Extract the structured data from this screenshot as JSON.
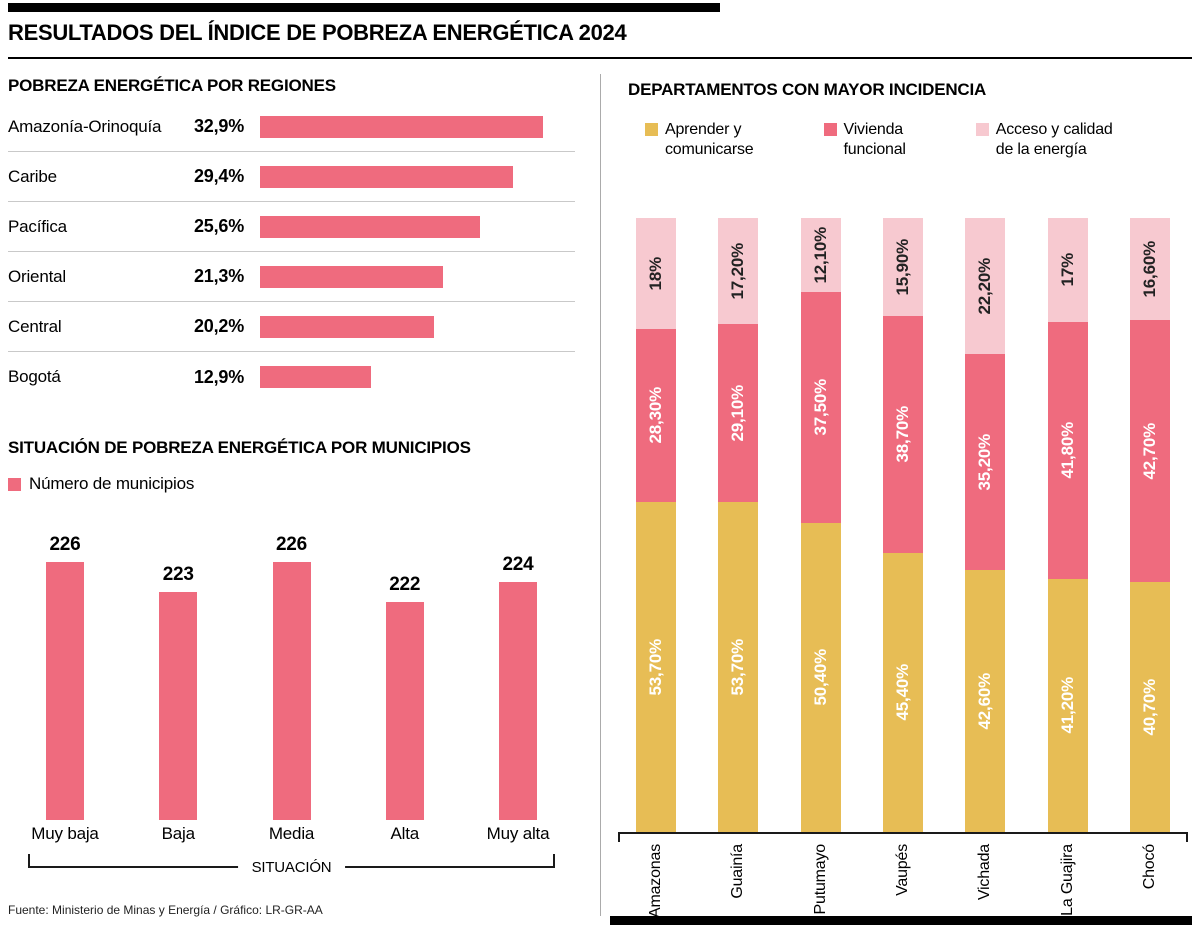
{
  "header": {
    "title": "RESULTADOS DEL ÍNDICE DE POBREZA ENERGÉTICA 2024"
  },
  "footer": {
    "source": "Fuente: Ministerio de Minas y Energía / Gráfico: LR-GR-AA"
  },
  "colors": {
    "pink": "#ef6b7e",
    "yellow": "#e7bd55",
    "light_pink": "#f7c9d0",
    "rule_black": "#000000"
  },
  "chart_data": [
    {
      "id": "regiones",
      "type": "bar",
      "orientation": "horizontal",
      "title": "POBREZA ENERGÉTICA POR REGIONES",
      "categories": [
        "Amazonía-Orinoquía",
        "Caribe",
        "Pacífica",
        "Oriental",
        "Central",
        "Bogotá"
      ],
      "values": [
        32.9,
        29.4,
        25.6,
        21.3,
        20.2,
        12.9
      ],
      "value_labels": [
        "32,9%",
        "29,4%",
        "25,6%",
        "21,3%",
        "20,2%",
        "12,9%"
      ],
      "unit": "%",
      "bar_color": "#ef6b7e"
    },
    {
      "id": "municipios",
      "type": "bar",
      "orientation": "vertical",
      "title": "SITUACIÓN DE POBREZA ENERGÉTICA POR MUNICIPIOS",
      "legend": "Número de municipios",
      "categories": [
        "Muy baja",
        "Baja",
        "Media",
        "Alta",
        "Muy alta"
      ],
      "values": [
        226,
        223,
        226,
        222,
        224
      ],
      "xlabel": "SITUACIÓN",
      "bar_color": "#ef6b7e"
    },
    {
      "id": "departamentos",
      "type": "stacked-bar",
      "orientation": "vertical",
      "title": "DEPARTAMENTOS CON MAYOR INCIDENCIA",
      "categories": [
        "Amazonas",
        "Guainía",
        "Putumayo",
        "Vaupés",
        "Vichada",
        "La Guajira",
        "Chocó"
      ],
      "ylim": [
        0,
        100
      ],
      "unit": "%",
      "series": [
        {
          "name": "Aprender y comunicarse",
          "legend_label": "Aprender y\ncomunicarse",
          "color": "#e7bd55",
          "label_color": "#ffffff",
          "values": [
            53.7,
            53.7,
            50.4,
            45.4,
            42.6,
            41.2,
            40.7
          ],
          "value_labels": [
            "53,70%",
            "53,70%",
            "50,40%",
            "45,40%",
            "42,60%",
            "41,20%",
            "40,70%"
          ]
        },
        {
          "name": "Vivienda funcional",
          "legend_label": "Vivienda\nfuncional",
          "color": "#ef6b7e",
          "label_color": "#ffffff",
          "values": [
            28.3,
            29.1,
            37.5,
            38.7,
            35.2,
            41.8,
            42.7
          ],
          "value_labels": [
            "28,30%",
            "29,10%",
            "37,50%",
            "38,70%",
            "35,20%",
            "41,80%",
            "42,70%"
          ]
        },
        {
          "name": "Acceso y calidad de la energía",
          "legend_label": "Acceso y calidad\nde la energía",
          "color": "#f7c9d0",
          "label_color": "#222222",
          "values": [
            18,
            17.2,
            12.1,
            15.9,
            22.2,
            17,
            16.6
          ],
          "value_labels": [
            "18%",
            "17,20%",
            "12,10%",
            "15,90%",
            "22,20%",
            "17%",
            "16,60%"
          ]
        }
      ]
    }
  ]
}
